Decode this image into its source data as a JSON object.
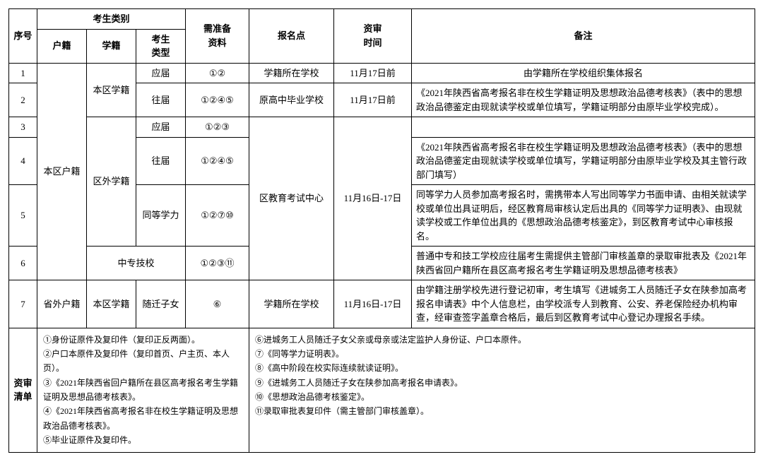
{
  "headers": {
    "seq": "序号",
    "cat_group": "考生类别",
    "huji": "户籍",
    "xueji": "学籍",
    "type": "考生\n类型",
    "materials": "需准备\n资料",
    "location": "报名点",
    "time": "资审\n时间",
    "remark": "备注"
  },
  "huji": {
    "local": "本区户籍",
    "outside": "省外户籍"
  },
  "xueji": {
    "local": "本区学籍",
    "outside": "区外学籍",
    "zhongzhuan": "中专技校",
    "local2": "本区学籍"
  },
  "rows": {
    "r1": {
      "seq": "1",
      "type": "应届",
      "mat": "①②",
      "loc": "学籍所在学校",
      "time": "11月17日前",
      "remark": "由学籍所在学校组织集体报名"
    },
    "r2": {
      "seq": "2",
      "type": "往届",
      "mat": "①②④⑤",
      "loc": "原高中毕业学校",
      "time": "11月17日前",
      "remark": "《2021年陕西省高考报名非在校生学籍证明及思想政治品德考核表》（表中的思想政治品德鉴定由现就读学校或单位填写，学籍证明部分由原毕业学校完成）。"
    },
    "r3": {
      "seq": "3",
      "type": "应届",
      "mat": "①②③",
      "remark": ""
    },
    "r4": {
      "seq": "4",
      "type": "往届",
      "mat": "①②④⑤",
      "remark": "《2021年陕西省高考报名非在校生学籍证明及思想政治品德考核表》（表中的思想政治品德鉴定由现就读学校或单位填写，学籍证明部分由原毕业学校及其主管行政部门填写）"
    },
    "r5": {
      "seq": "5",
      "type": "同等学力",
      "mat": "①②⑦⑩",
      "remark": "同等学力人员参加高考报名时，需携带本人写出同等学力书面申请、由相关就读学校或单位出具证明后，经区教育局审核认定后出具的《同等学力证明表》、由现就读学校或工作单位出具的《思想政治品德考核鉴定》，到区教育考试中心审核报名。"
    },
    "r6": {
      "seq": "6",
      "mat": "①②③⑪",
      "remark": "普通中专和技工学校应往届考生需提供主管部门审核盖章的录取审批表及《2021年陕西省回户籍所在县区高考报名考生学籍证明及思想品德考核表》"
    },
    "r7": {
      "seq": "7",
      "type": "随迁子女",
      "mat": "⑥",
      "loc": "学籍所在学校",
      "time": "11月16日-17日",
      "remark": "由学籍注册学校先进行登记初审，考生填写《进城务工人员随迁子女在陕参加高考报名申请表》中个人信息栏，由学校派专人到教育、公安、养老保险经办机构审查，经审查签字盖章合格后，最后到区教育考试中心登记办理报名手续。"
    }
  },
  "loc345": "区教育考试中心",
  "time345": "11月16日-17日",
  "checklist": {
    "label": "资审\n清单",
    "left": [
      "①身份证原件及复印件（复印正反两面）。",
      "②户口本原件及复印件（复印首页、户主页、本人页）。",
      "③《2021年陕西省回户籍所在县区高考报名考生学籍证明及思想品德考核表》。",
      "④《2021年陕西省高考报名非在校生学籍证明及思想政治品德考核表》。",
      "⑤毕业证原件及复印件。"
    ],
    "right": [
      "⑥进城务工人员随迁子女父亲或母亲或法定监护人身份证、户口本原件。",
      "⑦《同等学力证明表》。",
      "⑧《高中阶段在校实际连续就读证明》。",
      "⑨《进城务工人员随迁子女在陕参加高考报名申请表》。",
      "⑩《思想政治品德考核鉴定》。",
      "⑪录取审批表复印件（需主管部门审核盖章）。"
    ]
  }
}
